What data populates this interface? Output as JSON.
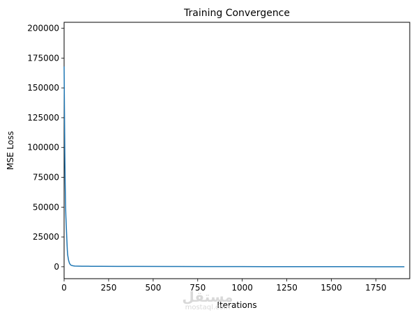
{
  "chart_data": {
    "type": "line",
    "title": "Training Convergence",
    "xlabel": "Iterations",
    "ylabel": "MSE Loss",
    "xlim": [
      0,
      1940
    ],
    "ylim": [
      -10000,
      205000
    ],
    "xticks": [
      0,
      250,
      500,
      750,
      1000,
      1250,
      1500,
      1750
    ],
    "yticks": [
      0,
      25000,
      50000,
      75000,
      100000,
      125000,
      150000,
      175000,
      200000
    ],
    "grid": false,
    "series": [
      {
        "color": "#1f77b4",
        "x": [
          0,
          2,
          4,
          6,
          8,
          10,
          12,
          15,
          18,
          20,
          25,
          30,
          35,
          40,
          50,
          60,
          80,
          100,
          150,
          200,
          300,
          400,
          600,
          800,
          1000,
          1250,
          1500,
          1750,
          1910
        ],
        "y": [
          168000,
          130000,
          95000,
          70000,
          52000,
          42000,
          35000,
          24000,
          14000,
          10000,
          5500,
          3000,
          1800,
          1200,
          800,
          600,
          500,
          450,
          400,
          380,
          330,
          280,
          220,
          170,
          130,
          90,
          60,
          40,
          30
        ]
      }
    ]
  },
  "watermark": {
    "main": "مستقل",
    "sub": "mostaql.com"
  }
}
